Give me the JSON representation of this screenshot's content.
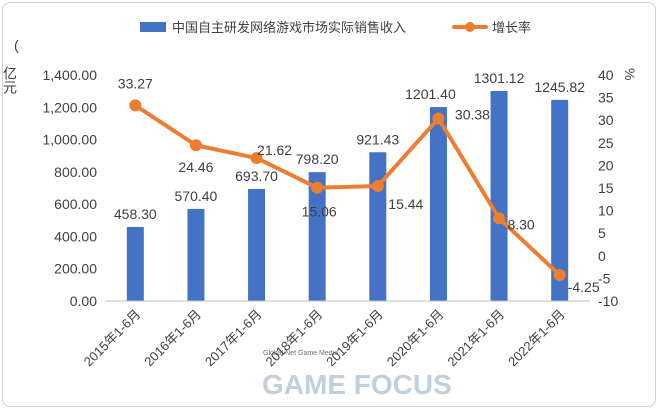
{
  "chart_data": {
    "type": "bar",
    "categories": [
      "2015年1-6月",
      "2016年1-6月",
      "2017年1-6月",
      "2018年1-6月",
      "2019年1-6月",
      "2020年1-6月",
      "2021年1-6月",
      "2022年1-6月"
    ],
    "series": [
      {
        "name": "中国自主研发网络游戏市场实际销售收入",
        "type": "bar",
        "axis": "left",
        "color": "#4472c4",
        "values": [
          458.3,
          570.4,
          693.7,
          798.2,
          921.43,
          1201.4,
          1301.12,
          1245.82
        ],
        "labels": [
          "458.30",
          "570.40",
          "693.70",
          "798.20",
          "921.43",
          "1201.40",
          "1301.12",
          "1245.82"
        ]
      },
      {
        "name": "增长率",
        "type": "line",
        "axis": "right",
        "color": "#ed7d31",
        "values": [
          33.27,
          24.46,
          21.62,
          15.06,
          15.44,
          30.38,
          8.3,
          -4.25
        ],
        "labels": [
          "33.27",
          "24.46",
          "21.62",
          "15.06",
          "15.44",
          "30.38",
          "8.30",
          "-4.25"
        ]
      }
    ],
    "y_left": {
      "label": "亿元",
      "ylim": [
        0,
        1400
      ],
      "ticks": [
        "0.00",
        "200.00",
        "400.00",
        "600.00",
        "800.00",
        "1,000.00",
        "1,200.00",
        "1,400.00"
      ]
    },
    "y_right": {
      "label": "%",
      "ylim": [
        -10,
        40
      ],
      "ticks": [
        "-10",
        "-5",
        "0",
        "5",
        "10",
        "15",
        "20",
        "25",
        "30",
        "35",
        "40"
      ]
    },
    "grid": false,
    "legend_position": "top"
  },
  "watermark": {
    "small_text": "Global Net Game Media",
    "big_text": "GAME FOCUS"
  }
}
